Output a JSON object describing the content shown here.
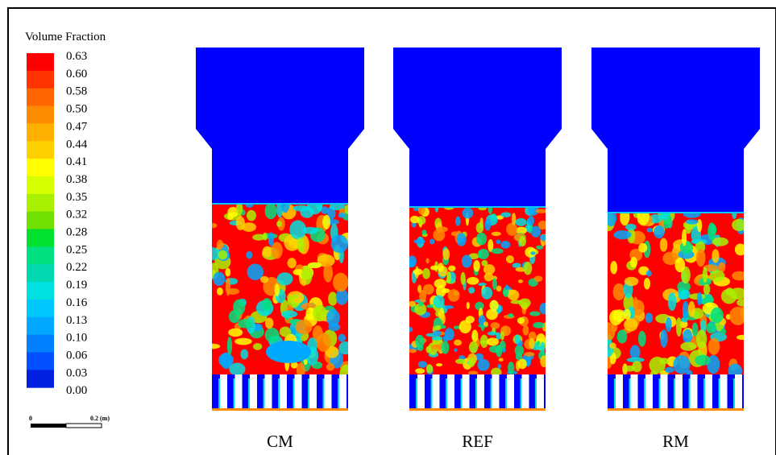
{
  "legend": {
    "title": "Volume Fraction",
    "labels": [
      "0.63",
      "0.60",
      "0.58",
      "0.50",
      "0.47",
      "0.44",
      "0.41",
      "0.38",
      "0.35",
      "0.32",
      "0.28",
      "0.25",
      "0.22",
      "0.19",
      "0.16",
      "0.13",
      "0.10",
      "0.06",
      "0.03",
      "0.00"
    ]
  },
  "scale_bar": {
    "start": "0",
    "end": "0.2 (m)"
  },
  "panels": [
    {
      "label": "CM"
    },
    {
      "label": "REF"
    },
    {
      "label": "RM"
    }
  ]
}
